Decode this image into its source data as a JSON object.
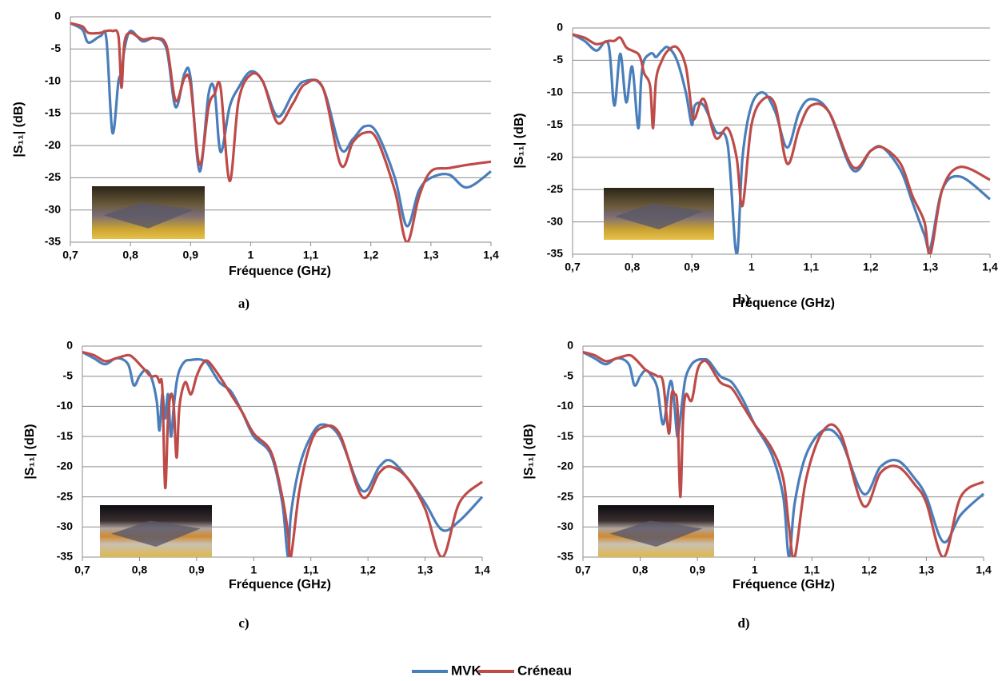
{
  "chart_data": [
    {
      "type": "line",
      "x_label": "Fréquence (GHz)",
      "y_label": "|S₁₁| (dB)",
      "x": [
        0.7,
        0.72,
        0.73,
        0.75,
        0.76,
        0.77,
        0.78,
        0.785,
        0.79,
        0.8,
        0.82,
        0.84,
        0.86,
        0.875,
        0.89,
        0.9,
        0.915,
        0.93,
        0.94,
        0.95,
        0.965,
        0.98,
        1.0,
        1.02,
        1.045,
        1.07,
        1.09,
        1.12,
        1.15,
        1.17,
        1.19,
        1.21,
        1.24,
        1.26,
        1.28,
        1.3,
        1.33,
        1.36,
        1.4
      ],
      "series": [
        {
          "name": "MVK",
          "color": "#4a7ebb",
          "values": [
            -1,
            -2,
            -4,
            -3,
            -3.5,
            -18,
            -10,
            -9,
            -5,
            -2.2,
            -3.8,
            -3.3,
            -5,
            -14,
            -8.8,
            -9.5,
            -24,
            -12,
            -11.5,
            -21,
            -14,
            -11,
            -8.5,
            -10,
            -15.5,
            -12,
            -10,
            -11,
            -20.5,
            -19,
            -17,
            -18,
            -25,
            -32.5,
            -27,
            -25,
            -24.5,
            -26.5,
            -24
          ]
        },
        {
          "name": "Créneau",
          "color": "#be4b48",
          "values": [
            -1,
            -1.5,
            -2.5,
            -2.5,
            -2.2,
            -2.2,
            -3,
            -11,
            -4,
            -2.5,
            -3.5,
            -3.3,
            -4.5,
            -13,
            -9.5,
            -10.5,
            -23,
            -14,
            -12,
            -11,
            -25.5,
            -13,
            -9,
            -10,
            -16.5,
            -13.5,
            -10.5,
            -11,
            -23,
            -19.5,
            -18,
            -19,
            -27,
            -35,
            -28,
            -24,
            -23.5,
            -23,
            -22.5
          ]
        }
      ],
      "xlim": [
        0.7,
        1.4
      ],
      "ylim": [
        -35,
        0
      ],
      "xticks": [
        {
          "value": 0.7,
          "label": "0,7"
        },
        {
          "value": 0.8,
          "label": "0,8"
        },
        {
          "value": 0.9,
          "label": "0,9"
        },
        1,
        {
          "value": 1.1,
          "label": "1,1"
        },
        {
          "value": 1.2,
          "label": "1,2"
        },
        {
          "value": 1.3,
          "label": "1,3"
        },
        {
          "value": 1.4,
          "label": "1,4"
        }
      ],
      "yticks": [
        0,
        -5,
        -10,
        -15,
        -20,
        -25,
        -30,
        -35
      ],
      "grid": true
    },
    {
      "type": "line",
      "x_label": "Fréquence (GHz)",
      "y_label": "|S₁₁| (dB)",
      "x": [
        0.7,
        0.72,
        0.74,
        0.76,
        0.77,
        0.78,
        0.79,
        0.8,
        0.81,
        0.815,
        0.82,
        0.83,
        0.835,
        0.84,
        0.85,
        0.86,
        0.875,
        0.89,
        0.9,
        0.905,
        0.92,
        0.94,
        0.96,
        0.975,
        0.985,
        1.0,
        1.02,
        1.04,
        1.06,
        1.08,
        1.1,
        1.13,
        1.17,
        1.2,
        1.22,
        1.25,
        1.27,
        1.29,
        1.3,
        1.32,
        1.35,
        1.4
      ],
      "series": [
        {
          "name": "MVK",
          "color": "#4a7ebb",
          "values": [
            -1,
            -2,
            -3.5,
            -2.5,
            -12,
            -4,
            -11.5,
            -6,
            -15.5,
            -8,
            -5,
            -4,
            -4,
            -4.5,
            -3.5,
            -3,
            -5,
            -10,
            -15,
            -12,
            -12,
            -16,
            -18,
            -35,
            -20,
            -12,
            -10,
            -13,
            -18.5,
            -13,
            -11,
            -13,
            -22,
            -19,
            -18.5,
            -22,
            -27,
            -32,
            -34,
            -25,
            -23,
            -26.5
          ]
        },
        {
          "name": "Créneau",
          "color": "#be4b48",
          "values": [
            -1,
            -1.5,
            -2.5,
            -2,
            -2,
            -1.5,
            -3,
            -3.5,
            -4,
            -5,
            -7,
            -9,
            -15.5,
            -8,
            -5,
            -3.5,
            -3,
            -6,
            -13,
            -14,
            -11,
            -17,
            -15.5,
            -20,
            -27.5,
            -15,
            -11,
            -12,
            -21,
            -15.5,
            -12,
            -13,
            -21.5,
            -19,
            -18.5,
            -21,
            -26,
            -30,
            -35,
            -25,
            -21.5,
            -23.5
          ]
        }
      ],
      "xlim": [
        0.7,
        1.4
      ],
      "ylim": [
        -35,
        0
      ],
      "xticks": [
        {
          "value": 0.7,
          "label": "0,7"
        },
        {
          "value": 0.8,
          "label": "0,8"
        },
        {
          "value": 0.9,
          "label": "0,9"
        },
        1,
        {
          "value": 1.1,
          "label": "1,1"
        },
        {
          "value": 1.2,
          "label": "1,2"
        },
        {
          "value": 1.3,
          "label": "1,3"
        },
        {
          "value": 1.4,
          "label": "1,4"
        }
      ],
      "yticks": [
        0,
        -5,
        -10,
        -15,
        -20,
        -25,
        -30,
        -35
      ],
      "grid": true
    },
    {
      "type": "line",
      "x_label": "Fréquence (GHz)",
      "y_label": "|S₁₁| (dB)",
      "x": [
        0.7,
        0.72,
        0.74,
        0.76,
        0.78,
        0.79,
        0.8,
        0.81,
        0.82,
        0.83,
        0.835,
        0.84,
        0.845,
        0.85,
        0.855,
        0.86,
        0.865,
        0.87,
        0.88,
        0.89,
        0.9,
        0.91,
        0.92,
        0.94,
        0.96,
        0.98,
        1.0,
        1.03,
        1.05,
        1.06,
        1.065,
        1.08,
        1.1,
        1.12,
        1.15,
        1.19,
        1.22,
        1.24,
        1.27,
        1.3,
        1.33,
        1.36,
        1.4
      ],
      "series": [
        {
          "name": "MVK",
          "color": "#4a7ebb",
          "values": [
            -1,
            -2,
            -3,
            -2,
            -3,
            -6.5,
            -5,
            -4,
            -5,
            -9,
            -14,
            -8,
            -12,
            -8,
            -15,
            -10,
            -6,
            -4,
            -2.5,
            -2.3,
            -2.2,
            -2.3,
            -3,
            -6,
            -7.5,
            -11,
            -15,
            -18,
            -26,
            -35,
            -28,
            -20,
            -15,
            -13,
            -15,
            -24,
            -20,
            -19,
            -22,
            -26,
            -30.5,
            -29,
            -25
          ]
        },
        {
          "name": "Créneau",
          "color": "#be4b48",
          "values": [
            -1,
            -1.5,
            -2.5,
            -2,
            -1.5,
            -2,
            -3,
            -4,
            -5,
            -5,
            -6,
            -7,
            -23.5,
            -12,
            -8,
            -10,
            -18.5,
            -10,
            -6,
            -8,
            -5,
            -3,
            -2.5,
            -5,
            -8,
            -11,
            -14.5,
            -17.5,
            -25,
            -31,
            -35,
            -24,
            -16,
            -13.5,
            -14.5,
            -25,
            -21,
            -20,
            -22,
            -27,
            -35,
            -26,
            -22.5
          ]
        }
      ],
      "xlim": [
        0.7,
        1.4
      ],
      "ylim": [
        -35,
        0
      ],
      "xticks": [
        {
          "value": 0.7,
          "label": "0,7"
        },
        {
          "value": 0.8,
          "label": "0,8"
        },
        {
          "value": 0.9,
          "label": "0,9"
        },
        1,
        {
          "value": 1.1,
          "label": "1,1"
        },
        {
          "value": 1.2,
          "label": "1,2"
        },
        {
          "value": 1.3,
          "label": "1,3"
        },
        {
          "value": 1.4,
          "label": "1,4"
        }
      ],
      "yticks": [
        0,
        -5,
        -10,
        -15,
        -20,
        -25,
        -30,
        -35
      ],
      "grid": true
    },
    {
      "type": "line",
      "x_label": "Fréquence (GHz)",
      "y_label": "|S₁₁| (dB)",
      "x": [
        0.7,
        0.72,
        0.74,
        0.76,
        0.78,
        0.79,
        0.8,
        0.81,
        0.82,
        0.83,
        0.84,
        0.85,
        0.855,
        0.86,
        0.865,
        0.87,
        0.875,
        0.88,
        0.89,
        0.9,
        0.91,
        0.92,
        0.94,
        0.96,
        0.98,
        1.0,
        1.03,
        1.05,
        1.06,
        1.07,
        1.09,
        1.12,
        1.15,
        1.19,
        1.22,
        1.25,
        1.28,
        1.3,
        1.33,
        1.36,
        1.4
      ],
      "series": [
        {
          "name": "MVK",
          "color": "#4a7ebb",
          "values": [
            -1,
            -2,
            -3,
            -2,
            -3,
            -6.5,
            -5,
            -4,
            -5,
            -7,
            -13,
            -7,
            -6,
            -10,
            -15,
            -12,
            -8,
            -5,
            -3,
            -2.3,
            -2.2,
            -2.5,
            -5,
            -6,
            -9,
            -13,
            -18,
            -25,
            -35,
            -26,
            -18,
            -14,
            -15.5,
            -24.5,
            -20,
            -19,
            -22,
            -25,
            -32.5,
            -28,
            -24.5
          ]
        },
        {
          "name": "Créneau",
          "color": "#be4b48",
          "values": [
            -1,
            -1.5,
            -2.5,
            -2,
            -1.5,
            -2,
            -3,
            -4,
            -4.5,
            -5,
            -6,
            -14.5,
            -8,
            -8,
            -10,
            -25,
            -12,
            -8,
            -9,
            -4,
            -2.5,
            -3,
            -6,
            -7,
            -10,
            -13,
            -17,
            -22,
            -30,
            -35,
            -22,
            -14,
            -14.5,
            -26.5,
            -21,
            -20,
            -23,
            -26,
            -35,
            -25,
            -22.5
          ]
        }
      ],
      "xlim": [
        0.7,
        1.4
      ],
      "ylim": [
        -35,
        0
      ],
      "xticks": [
        {
          "value": 0.7,
          "label": "0,7"
        },
        {
          "value": 0.8,
          "label": "0,8"
        },
        {
          "value": 0.9,
          "label": "0,9"
        },
        1,
        {
          "value": 1.1,
          "label": "1,1"
        },
        {
          "value": 1.2,
          "label": "1,2"
        },
        {
          "value": 1.3,
          "label": "1,3"
        },
        {
          "value": 1.4,
          "label": "1,4"
        }
      ],
      "yticks": [
        0,
        -5,
        -10,
        -15,
        -20,
        -25,
        -30,
        -35
      ],
      "grid": true
    }
  ],
  "captions": [
    "a)",
    "b)",
    "c)",
    "d)"
  ]
}
